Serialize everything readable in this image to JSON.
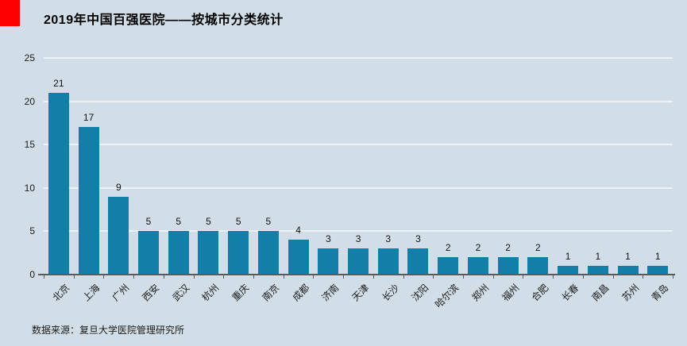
{
  "title": "2019年中国百强医院——按城市分类统计",
  "source": "数据来源：复旦大学医院管理研究所",
  "colors": {
    "background": "#d2dee7",
    "accent": "#fe0000",
    "bar": "#137fa9",
    "axis": "#595959",
    "gridline": "#edf2f6"
  },
  "chart_data": {
    "type": "bar",
    "title": "2019年中国百强医院——按城市分类统计",
    "categories": [
      "北京",
      "上海",
      "广州",
      "西安",
      "武汉",
      "杭州",
      "重庆",
      "南京",
      "成都",
      "济南",
      "天津",
      "长沙",
      "沈阳",
      "哈尔滨",
      "郑州",
      "福州",
      "合肥",
      "长春",
      "南昌",
      "苏州",
      "青岛"
    ],
    "values": [
      21,
      17,
      9,
      5,
      5,
      5,
      5,
      5,
      4,
      3,
      3,
      3,
      3,
      2,
      2,
      2,
      2,
      1,
      1,
      1,
      1
    ],
    "xlabel": "",
    "ylabel": "",
    "ylim": [
      0,
      25
    ],
    "yticks": [
      0,
      5,
      10,
      15,
      20,
      25
    ],
    "grid": true,
    "legend": false,
    "x_label_rotation_deg": 45,
    "data_labels": true,
    "source_note": "数据来源：复旦大学医院管理研究所"
  }
}
